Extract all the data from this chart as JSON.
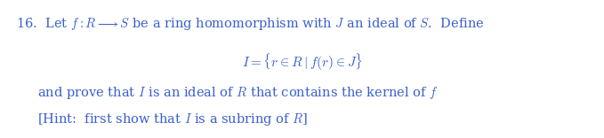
{
  "background_color": "#ffffff",
  "blue_color": "#3a5fcd",
  "fig_width": 6.79,
  "fig_height": 1.56,
  "dpi": 100,
  "line1_part1": "16.  Let ",
  "line1_math1": "f : R \\longrightarrow S",
  "line1_part2": " be a ring homomorphism with ",
  "line1_math2": "J",
  "line1_part3": " an ideal of ",
  "line1_math3": "S",
  "line1_part4": ".  Define",
  "line2": "$I = \\{r \\in R\\mid f(r) \\in J\\}$",
  "line3": "and prove that $I$ is an ideal of $R$ that contains the kernel of $f$",
  "line4": "[Hint:  first show that $I$ is a subring of $R$]",
  "fontsize": 10.5
}
